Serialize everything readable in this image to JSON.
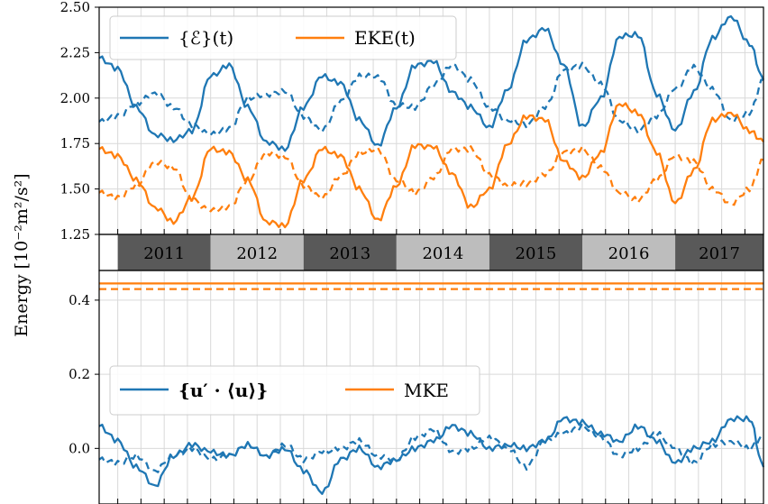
{
  "chart_data": [
    {
      "type": "line",
      "panel": "top",
      "x_range": [
        2010.8,
        2017.95
      ],
      "ylim": [
        1.25,
        2.5
      ],
      "yticks": [
        1.25,
        1.5,
        1.75,
        2.0,
        2.25,
        2.5
      ],
      "ytick_labels": [
        "1.25",
        "1.50",
        "1.75",
        "2.00",
        "2.25",
        "2.50"
      ],
      "grid": true,
      "legend_position": "top-left",
      "legend": [
        "{ℰ}(t)",
        "EKE(t)"
      ],
      "series": [
        {
          "name": "{ℰ}(t)",
          "style": "solid",
          "color": "#1f77b4",
          "x": [
            2010.8,
            2011.0,
            2011.2,
            2011.4,
            2011.6,
            2011.8,
            2012.0,
            2012.2,
            2012.4,
            2012.6,
            2012.8,
            2013.0,
            2013.2,
            2013.4,
            2013.6,
            2013.8,
            2014.0,
            2014.2,
            2014.4,
            2014.6,
            2014.8,
            2015.0,
            2015.2,
            2015.4,
            2015.6,
            2015.8,
            2016.0,
            2016.2,
            2016.4,
            2016.6,
            2016.8,
            2017.0,
            2017.2,
            2017.4,
            2017.6,
            2017.8,
            2017.95
          ],
          "y": [
            2.22,
            2.16,
            1.95,
            1.8,
            1.77,
            1.82,
            2.12,
            2.18,
            1.95,
            1.76,
            1.72,
            1.95,
            2.12,
            2.08,
            1.88,
            1.74,
            1.95,
            2.18,
            2.2,
            2.03,
            1.95,
            1.84,
            2.05,
            2.32,
            2.38,
            2.18,
            1.84,
            2.0,
            2.34,
            2.35,
            2.02,
            1.82,
            2.03,
            2.33,
            2.45,
            2.3,
            2.1
          ]
        },
        {
          "name": "{ℰ}(t) dashed",
          "style": "dashed",
          "color": "#1f77b4",
          "x": [
            2010.8,
            2011.0,
            2011.2,
            2011.4,
            2011.6,
            2011.8,
            2012.0,
            2012.2,
            2012.4,
            2012.6,
            2012.8,
            2013.0,
            2013.2,
            2013.4,
            2013.6,
            2013.8,
            2014.0,
            2014.2,
            2014.4,
            2014.6,
            2014.8,
            2015.0,
            2015.2,
            2015.4,
            2015.6,
            2015.8,
            2016.0,
            2016.2,
            2016.4,
            2016.6,
            2016.8,
            2017.0,
            2017.2,
            2017.4,
            2017.6,
            2017.8,
            2017.95
          ],
          "y": [
            1.87,
            1.9,
            1.97,
            2.03,
            1.95,
            1.85,
            1.8,
            1.83,
            2.0,
            2.02,
            2.04,
            1.9,
            1.82,
            1.98,
            2.12,
            2.12,
            1.96,
            1.95,
            2.07,
            2.18,
            2.1,
            1.95,
            1.88,
            1.85,
            1.95,
            2.15,
            2.18,
            2.08,
            1.88,
            1.82,
            1.9,
            2.05,
            2.17,
            2.05,
            1.88,
            1.92,
            2.1
          ]
        },
        {
          "name": "EKE(t)",
          "style": "solid",
          "color": "#ff7f0e",
          "x": [
            2010.8,
            2011.0,
            2011.2,
            2011.4,
            2011.6,
            2011.8,
            2012.0,
            2012.2,
            2012.4,
            2012.6,
            2012.8,
            2013.0,
            2013.2,
            2013.4,
            2013.6,
            2013.8,
            2014.0,
            2014.2,
            2014.4,
            2014.6,
            2014.8,
            2015.0,
            2015.2,
            2015.4,
            2015.6,
            2015.8,
            2016.0,
            2016.2,
            2016.4,
            2016.6,
            2016.8,
            2017.0,
            2017.2,
            2017.4,
            2017.6,
            2017.8,
            2017.95
          ],
          "y": [
            1.72,
            1.68,
            1.55,
            1.4,
            1.32,
            1.45,
            1.72,
            1.7,
            1.55,
            1.32,
            1.3,
            1.55,
            1.72,
            1.68,
            1.5,
            1.33,
            1.52,
            1.74,
            1.73,
            1.58,
            1.4,
            1.5,
            1.75,
            1.9,
            1.88,
            1.65,
            1.56,
            1.7,
            1.97,
            1.92,
            1.7,
            1.42,
            1.6,
            1.88,
            1.92,
            1.82,
            1.76
          ]
        },
        {
          "name": "EKE(t) dashed",
          "style": "dashed",
          "color": "#ff7f0e",
          "x": [
            2010.8,
            2011.0,
            2011.2,
            2011.4,
            2011.6,
            2011.8,
            2012.0,
            2012.2,
            2012.4,
            2012.6,
            2012.8,
            2013.0,
            2013.2,
            2013.4,
            2013.6,
            2013.8,
            2014.0,
            2014.2,
            2014.4,
            2014.6,
            2014.8,
            2015.0,
            2015.2,
            2015.4,
            2015.6,
            2015.8,
            2016.0,
            2016.2,
            2016.4,
            2016.6,
            2016.8,
            2017.0,
            2017.2,
            2017.4,
            2017.6,
            2017.8,
            2017.95
          ],
          "y": [
            1.48,
            1.45,
            1.52,
            1.65,
            1.62,
            1.44,
            1.38,
            1.4,
            1.55,
            1.7,
            1.68,
            1.52,
            1.45,
            1.57,
            1.7,
            1.72,
            1.55,
            1.48,
            1.56,
            1.72,
            1.72,
            1.58,
            1.52,
            1.53,
            1.58,
            1.7,
            1.72,
            1.62,
            1.48,
            1.44,
            1.55,
            1.68,
            1.65,
            1.5,
            1.42,
            1.5,
            1.66
          ]
        }
      ]
    },
    {
      "type": "line",
      "panel": "bottom",
      "x_range": [
        2010.8,
        2017.95
      ],
      "ylim": [
        -0.15,
        0.48
      ],
      "yticks": [
        0.0,
        0.2,
        0.4
      ],
      "ytick_labels": [
        "0.0",
        "0.2",
        "0.4"
      ],
      "grid": true,
      "legend_position": "middle-left",
      "legend": [
        "{u′ · ⟨u⟩}",
        "MKE"
      ],
      "series": [
        {
          "name": "{u′ · ⟨u⟩}",
          "style": "solid",
          "color": "#1f77b4",
          "x": [
            2010.8,
            2011.0,
            2011.2,
            2011.4,
            2011.6,
            2011.8,
            2012.0,
            2012.2,
            2012.4,
            2012.6,
            2012.8,
            2013.0,
            2013.2,
            2013.4,
            2013.6,
            2013.8,
            2014.0,
            2014.2,
            2014.4,
            2014.6,
            2014.8,
            2015.0,
            2015.2,
            2015.4,
            2015.6,
            2015.8,
            2016.0,
            2016.2,
            2016.4,
            2016.6,
            2016.8,
            2017.0,
            2017.2,
            2017.4,
            2017.6,
            2017.8,
            2017.95
          ],
          "y": [
            0.06,
            0.02,
            -0.05,
            -0.1,
            -0.02,
            0.01,
            -0.01,
            -0.02,
            0.01,
            -0.02,
            0.0,
            -0.06,
            -0.12,
            -0.03,
            0.0,
            -0.05,
            -0.03,
            0.0,
            0.02,
            0.06,
            0.04,
            0.0,
            0.01,
            0.0,
            0.02,
            0.08,
            0.07,
            0.04,
            0.02,
            0.06,
            0.02,
            -0.04,
            0.0,
            0.02,
            0.08,
            0.08,
            -0.05
          ]
        },
        {
          "name": "{u′ · ⟨u⟩} dashed",
          "style": "dashed",
          "color": "#1f77b4",
          "x": [
            2010.8,
            2011.0,
            2011.2,
            2011.4,
            2011.6,
            2011.8,
            2012.0,
            2012.2,
            2012.4,
            2012.6,
            2012.8,
            2013.0,
            2013.2,
            2013.4,
            2013.6,
            2013.8,
            2014.0,
            2014.2,
            2014.4,
            2014.6,
            2014.8,
            2015.0,
            2015.2,
            2015.4,
            2015.6,
            2015.8,
            2016.0,
            2016.2,
            2016.4,
            2016.6,
            2016.8,
            2017.0,
            2017.2,
            2017.4,
            2017.6,
            2017.8,
            2017.95
          ],
          "y": [
            -0.03,
            -0.04,
            -0.02,
            -0.06,
            -0.02,
            0.0,
            -0.03,
            -0.02,
            0.01,
            -0.02,
            0.01,
            -0.03,
            -0.01,
            0.0,
            0.02,
            -0.02,
            -0.03,
            0.03,
            0.05,
            -0.01,
            0.0,
            0.03,
            0.0,
            -0.05,
            0.02,
            0.04,
            0.06,
            0.03,
            -0.02,
            0.0,
            0.04,
            0.0,
            -0.04,
            0.01,
            0.02,
            0.0,
            0.03
          ]
        },
        {
          "name": "MKE",
          "style": "solid",
          "color": "#ff7f0e",
          "x": [
            2010.8,
            2017.95
          ],
          "y": [
            0.445,
            0.445
          ]
        },
        {
          "name": "MKE dashed",
          "style": "dashed",
          "color": "#ff7f0e",
          "x": [
            2010.8,
            2017.95
          ],
          "y": [
            0.43,
            0.43
          ]
        }
      ]
    }
  ],
  "year_band": {
    "years": [
      "2011",
      "2012",
      "2013",
      "2014",
      "2015",
      "2016",
      "2017"
    ],
    "colors": [
      "#595959",
      "#bdbdbd",
      "#595959",
      "#bdbdbd",
      "#595959",
      "#bdbdbd",
      "#595959"
    ]
  },
  "ylabel": "Energy [10⁻²m²/s²]",
  "colors": {
    "blue": "#1f77b4",
    "orange": "#ff7f0e"
  }
}
